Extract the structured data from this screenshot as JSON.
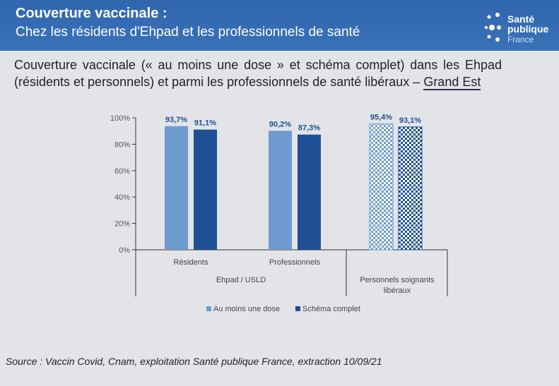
{
  "header": {
    "title": "Couverture vaccinale :",
    "subtitle": "Chez les résidents d'Ehpad et les professionnels de santé",
    "logo": [
      "Santé",
      "publique",
      "France"
    ]
  },
  "description": {
    "text": "Couverture vaccinale (« au moins une dose » et schéma complet) dans les Ehpad (résidents et personnels) et parmi les professionnels de santé libéraux – ",
    "region": "Grand Est"
  },
  "chart_data": {
    "type": "bar",
    "categories": [
      "Résidents",
      "Professionnels",
      "Personnels soignants libéraux"
    ],
    "groups": [
      {
        "label": "Ehpad / USLD",
        "categories": [
          "Résidents",
          "Professionnels"
        ]
      },
      {
        "label": "Personnels soignants libéraux",
        "categories": [
          "Personnels soignants libéraux"
        ]
      }
    ],
    "series": [
      {
        "name": "Au moins une dose",
        "values": [
          93.7,
          90.2,
          95.4
        ],
        "labels": [
          "93,7%",
          "90,2%",
          "95,4%"
        ],
        "color": "#6d9bd0"
      },
      {
        "name": "Schéma complet",
        "values": [
          91.1,
          87.3,
          93.1
        ],
        "labels": [
          "91,1%",
          "87,3%",
          "93,1%"
        ],
        "color": "#1f4f95"
      }
    ],
    "ylim": [
      0,
      100
    ],
    "yticks": [
      "0%",
      "20%",
      "40%",
      "60%",
      "80%",
      "100%"
    ],
    "legend": "bottom",
    "grid": false
  },
  "source": "Source : Vaccin Covid, Cnam, exploitation Santé publique France, extraction 10/09/21"
}
